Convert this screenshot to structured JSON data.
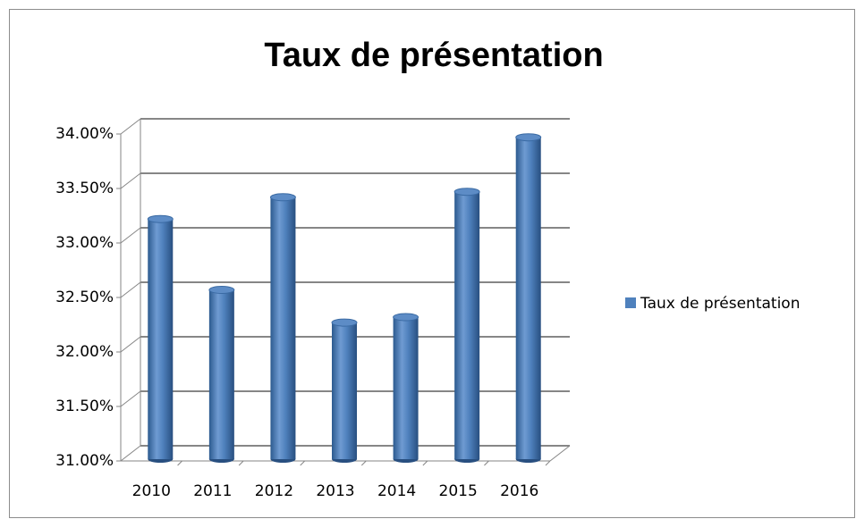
{
  "chart_data": {
    "type": "bar3d",
    "title": "Taux de présentation",
    "categories": [
      "2010",
      "2011",
      "2012",
      "2013",
      "2014",
      "2015",
      "2016"
    ],
    "series": [
      {
        "name": "Taux de présentation",
        "color": "#4f81bd",
        "values": [
          33.15,
          32.5,
          33.35,
          32.2,
          32.25,
          33.4,
          33.9
        ]
      }
    ],
    "ylim": [
      31,
      34
    ],
    "yticks": [
      {
        "value": 31,
        "label": "31.00%"
      },
      {
        "value": 31.5,
        "label": "31.50%"
      },
      {
        "value": 32,
        "label": "32.00%"
      },
      {
        "value": 32.5,
        "label": "32.50%"
      },
      {
        "value": 33,
        "label": "33.00%"
      },
      {
        "value": 33.5,
        "label": "33.50%"
      },
      {
        "value": 34,
        "label": "34.00%"
      }
    ],
    "grid": true,
    "legend": "right"
  }
}
